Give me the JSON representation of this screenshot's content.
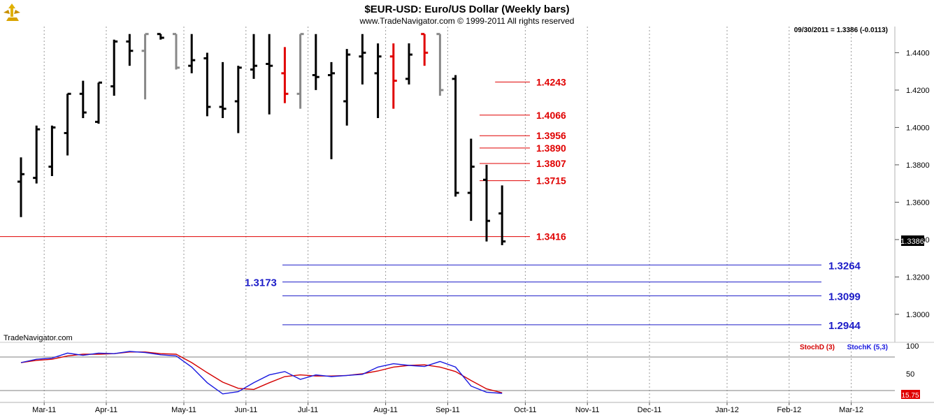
{
  "header": {
    "title": "$EUR-USD:  Euro/US Dollar  (Weekly bars)",
    "copyright": "www.TradeNavigator.com © 1999-2011 All rights reserved",
    "last_info": "09/30/2011 = 1.3386 (-0.0113)",
    "watermark": "TradeNavigator.com"
  },
  "colors": {
    "bar_normal": "#000000",
    "bar_gray": "#888888",
    "bar_red": "#e00000",
    "fib_red": "#e00000",
    "target_blue": "#1c1cc8",
    "stoch_d": "#d40000",
    "stoch_k": "#1a1ae0"
  },
  "chart_data": [
    {
      "type": "ohlc",
      "title": "$EUR-USD:  Euro/US Dollar  (Weekly bars)",
      "x_tick_labels": [
        "Mar-11",
        "Apr-11",
        "May-11",
        "Jun-11",
        "Jul-11",
        "Aug-11",
        "Sep-11",
        "Oct-11",
        "Nov-11",
        "Dec-11",
        "Jan-12",
        "Feb-12",
        "Mar-12"
      ],
      "x_tick_week_index": [
        1,
        5,
        10,
        14,
        18,
        23,
        27,
        32,
        36,
        40,
        45,
        49,
        53
      ],
      "y_tick_labels": [
        "1.3000",
        "1.3200",
        "1.3400",
        "1.3600",
        "1.3800",
        "1.4000",
        "1.4200",
        "1.4400"
      ],
      "ylim": [
        1.285,
        1.454
      ],
      "last_price_label": "1.3386",
      "bars": [
        {
          "w": 0,
          "o": 1.371,
          "h": 1.384,
          "l": 1.352,
          "c": 1.375,
          "color": "black"
        },
        {
          "w": 1,
          "o": 1.373,
          "h": 1.401,
          "l": 1.37,
          "c": 1.399,
          "color": "black"
        },
        {
          "w": 2,
          "o": 1.379,
          "h": 1.401,
          "l": 1.374,
          "c": 1.4,
          "color": "black"
        },
        {
          "w": 3,
          "o": 1.397,
          "h": 1.418,
          "l": 1.385,
          "c": 1.418,
          "color": "black"
        },
        {
          "w": 4,
          "o": 1.418,
          "h": 1.425,
          "l": 1.405,
          "c": 1.408,
          "color": "black"
        },
        {
          "w": 5,
          "o": 1.403,
          "h": 1.424,
          "l": 1.402,
          "c": 1.424,
          "color": "black"
        },
        {
          "w": 6,
          "o": 1.422,
          "h": 1.447,
          "l": 1.417,
          "c": 1.446,
          "color": "black"
        },
        {
          "w": 7,
          "o": 1.446,
          "h": 1.45,
          "l": 1.433,
          "c": 1.441,
          "color": "black"
        },
        {
          "w": 8,
          "o": 1.441,
          "h": 1.45,
          "l": 1.415,
          "c": 1.45,
          "color": "gray"
        },
        {
          "w": 9,
          "o": 1.45,
          "h": 1.45,
          "l": 1.447,
          "c": 1.448,
          "color": "black"
        },
        {
          "w": 10,
          "o": 1.45,
          "h": 1.45,
          "l": 1.431,
          "c": 1.432,
          "color": "gray"
        },
        {
          "w": 11,
          "o": 1.433,
          "h": 1.45,
          "l": 1.429,
          "c": 1.436,
          "color": "black"
        },
        {
          "w": 12,
          "o": 1.437,
          "h": 1.44,
          "l": 1.406,
          "c": 1.411,
          "color": "black"
        },
        {
          "w": 13,
          "o": 1.411,
          "h": 1.435,
          "l": 1.405,
          "c": 1.41,
          "color": "black"
        },
        {
          "w": 14,
          "o": 1.414,
          "h": 1.433,
          "l": 1.397,
          "c": 1.432,
          "color": "black"
        },
        {
          "w": 15,
          "o": 1.431,
          "h": 1.45,
          "l": 1.426,
          "c": 1.433,
          "color": "black"
        },
        {
          "w": 16,
          "o": 1.434,
          "h": 1.45,
          "l": 1.407,
          "c": 1.433,
          "color": "black"
        },
        {
          "w": 17,
          "o": 1.429,
          "h": 1.443,
          "l": 1.413,
          "c": 1.418,
          "color": "red"
        },
        {
          "w": 18,
          "o": 1.418,
          "h": 1.45,
          "l": 1.41,
          "c": 1.45,
          "color": "gray"
        },
        {
          "w": 19,
          "o": 1.428,
          "h": 1.45,
          "l": 1.42,
          "c": 1.427,
          "color": "black"
        },
        {
          "w": 20,
          "o": 1.428,
          "h": 1.435,
          "l": 1.383,
          "c": 1.429,
          "color": "black"
        },
        {
          "w": 21,
          "o": 1.414,
          "h": 1.442,
          "l": 1.401,
          "c": 1.439,
          "color": "black"
        },
        {
          "w": 22,
          "o": 1.438,
          "h": 1.45,
          "l": 1.423,
          "c": 1.44,
          "color": "black"
        },
        {
          "w": 23,
          "o": 1.429,
          "h": 1.445,
          "l": 1.405,
          "c": 1.438,
          "color": "black"
        },
        {
          "w": 24,
          "o": 1.438,
          "h": 1.445,
          "l": 1.41,
          "c": 1.425,
          "color": "red"
        },
        {
          "w": 25,
          "o": 1.426,
          "h": 1.445,
          "l": 1.423,
          "c": 1.439,
          "color": "black"
        },
        {
          "w": 26,
          "o": 1.45,
          "h": 1.45,
          "l": 1.433,
          "c": 1.44,
          "color": "red"
        },
        {
          "w": 27,
          "o": 1.45,
          "h": 1.45,
          "l": 1.417,
          "c": 1.42,
          "color": "gray"
        },
        {
          "w": 28,
          "o": 1.426,
          "h": 1.428,
          "l": 1.363,
          "c": 1.365,
          "color": "black"
        },
        {
          "w": 29,
          "o": 1.365,
          "h": 1.394,
          "l": 1.35,
          "c": 1.379,
          "color": "black"
        },
        {
          "w": 30,
          "o": 1.372,
          "h": 1.38,
          "l": 1.339,
          "c": 1.35,
          "color": "black"
        },
        {
          "w": 31,
          "o": 1.354,
          "h": 1.369,
          "l": 1.337,
          "c": 1.339,
          "color": "black"
        }
      ]
    },
    {
      "type": "line",
      "title": "",
      "y_tick_labels": [
        "50",
        "100"
      ],
      "ylim": [
        0,
        100
      ],
      "last_value_label": "15.75",
      "series": [
        {
          "name": "StochD (3)",
          "color": "red",
          "x": [
            0,
            1,
            2,
            3,
            4,
            5,
            6,
            7,
            8,
            9,
            10,
            11,
            12,
            13,
            14,
            15,
            16,
            17,
            18,
            19,
            20,
            21,
            22,
            23,
            24,
            25,
            26,
            27,
            28,
            29,
            30,
            31
          ],
          "y": [
            70,
            74,
            76,
            82,
            85,
            85,
            86,
            89,
            89,
            86,
            85,
            70,
            52,
            35,
            24,
            22,
            34,
            45,
            48,
            46,
            46,
            47,
            50,
            55,
            62,
            65,
            66,
            62,
            54,
            38,
            23,
            16
          ]
        },
        {
          "name": "StochK (5,3)",
          "color": "blue",
          "x": [
            0,
            1,
            2,
            3,
            4,
            5,
            6,
            7,
            8,
            9,
            10,
            11,
            12,
            13,
            14,
            15,
            16,
            17,
            18,
            19,
            20,
            21,
            22,
            23,
            24,
            25,
            26,
            27,
            28,
            29,
            30,
            31
          ],
          "y": [
            70,
            76,
            78,
            87,
            83,
            87,
            86,
            90,
            88,
            84,
            82,
            62,
            34,
            14,
            18,
            34,
            48,
            54,
            40,
            48,
            45,
            47,
            49,
            62,
            68,
            65,
            63,
            72,
            62,
            28,
            17,
            15
          ]
        }
      ],
      "horizontal_lines": [
        80,
        20
      ]
    }
  ],
  "fib_levels": [
    {
      "value": 1.4243,
      "label": "1.4243",
      "x_from": 31
    },
    {
      "value": 1.4066,
      "label": "1.4066",
      "x_from": 30
    },
    {
      "value": 1.3956,
      "label": "1.3956",
      "x_from": 30
    },
    {
      "value": 1.389,
      "label": "1.3890",
      "x_from": 30
    },
    {
      "value": 1.3807,
      "label": "1.3807",
      "x_from": 30
    },
    {
      "value": 1.3715,
      "label": "1.3715",
      "x_from": 30
    },
    {
      "value": 1.3416,
      "label": "1.3416",
      "x_from": -1
    }
  ],
  "targets": [
    {
      "value": 1.3264,
      "label": "1.3264",
      "side": "right"
    },
    {
      "value": 1.3173,
      "label": "1.3173",
      "side": "left"
    },
    {
      "value": 1.3099,
      "label": "1.3099",
      "side": "right"
    },
    {
      "value": 1.2944,
      "label": "1.2944",
      "side": "right"
    }
  ]
}
